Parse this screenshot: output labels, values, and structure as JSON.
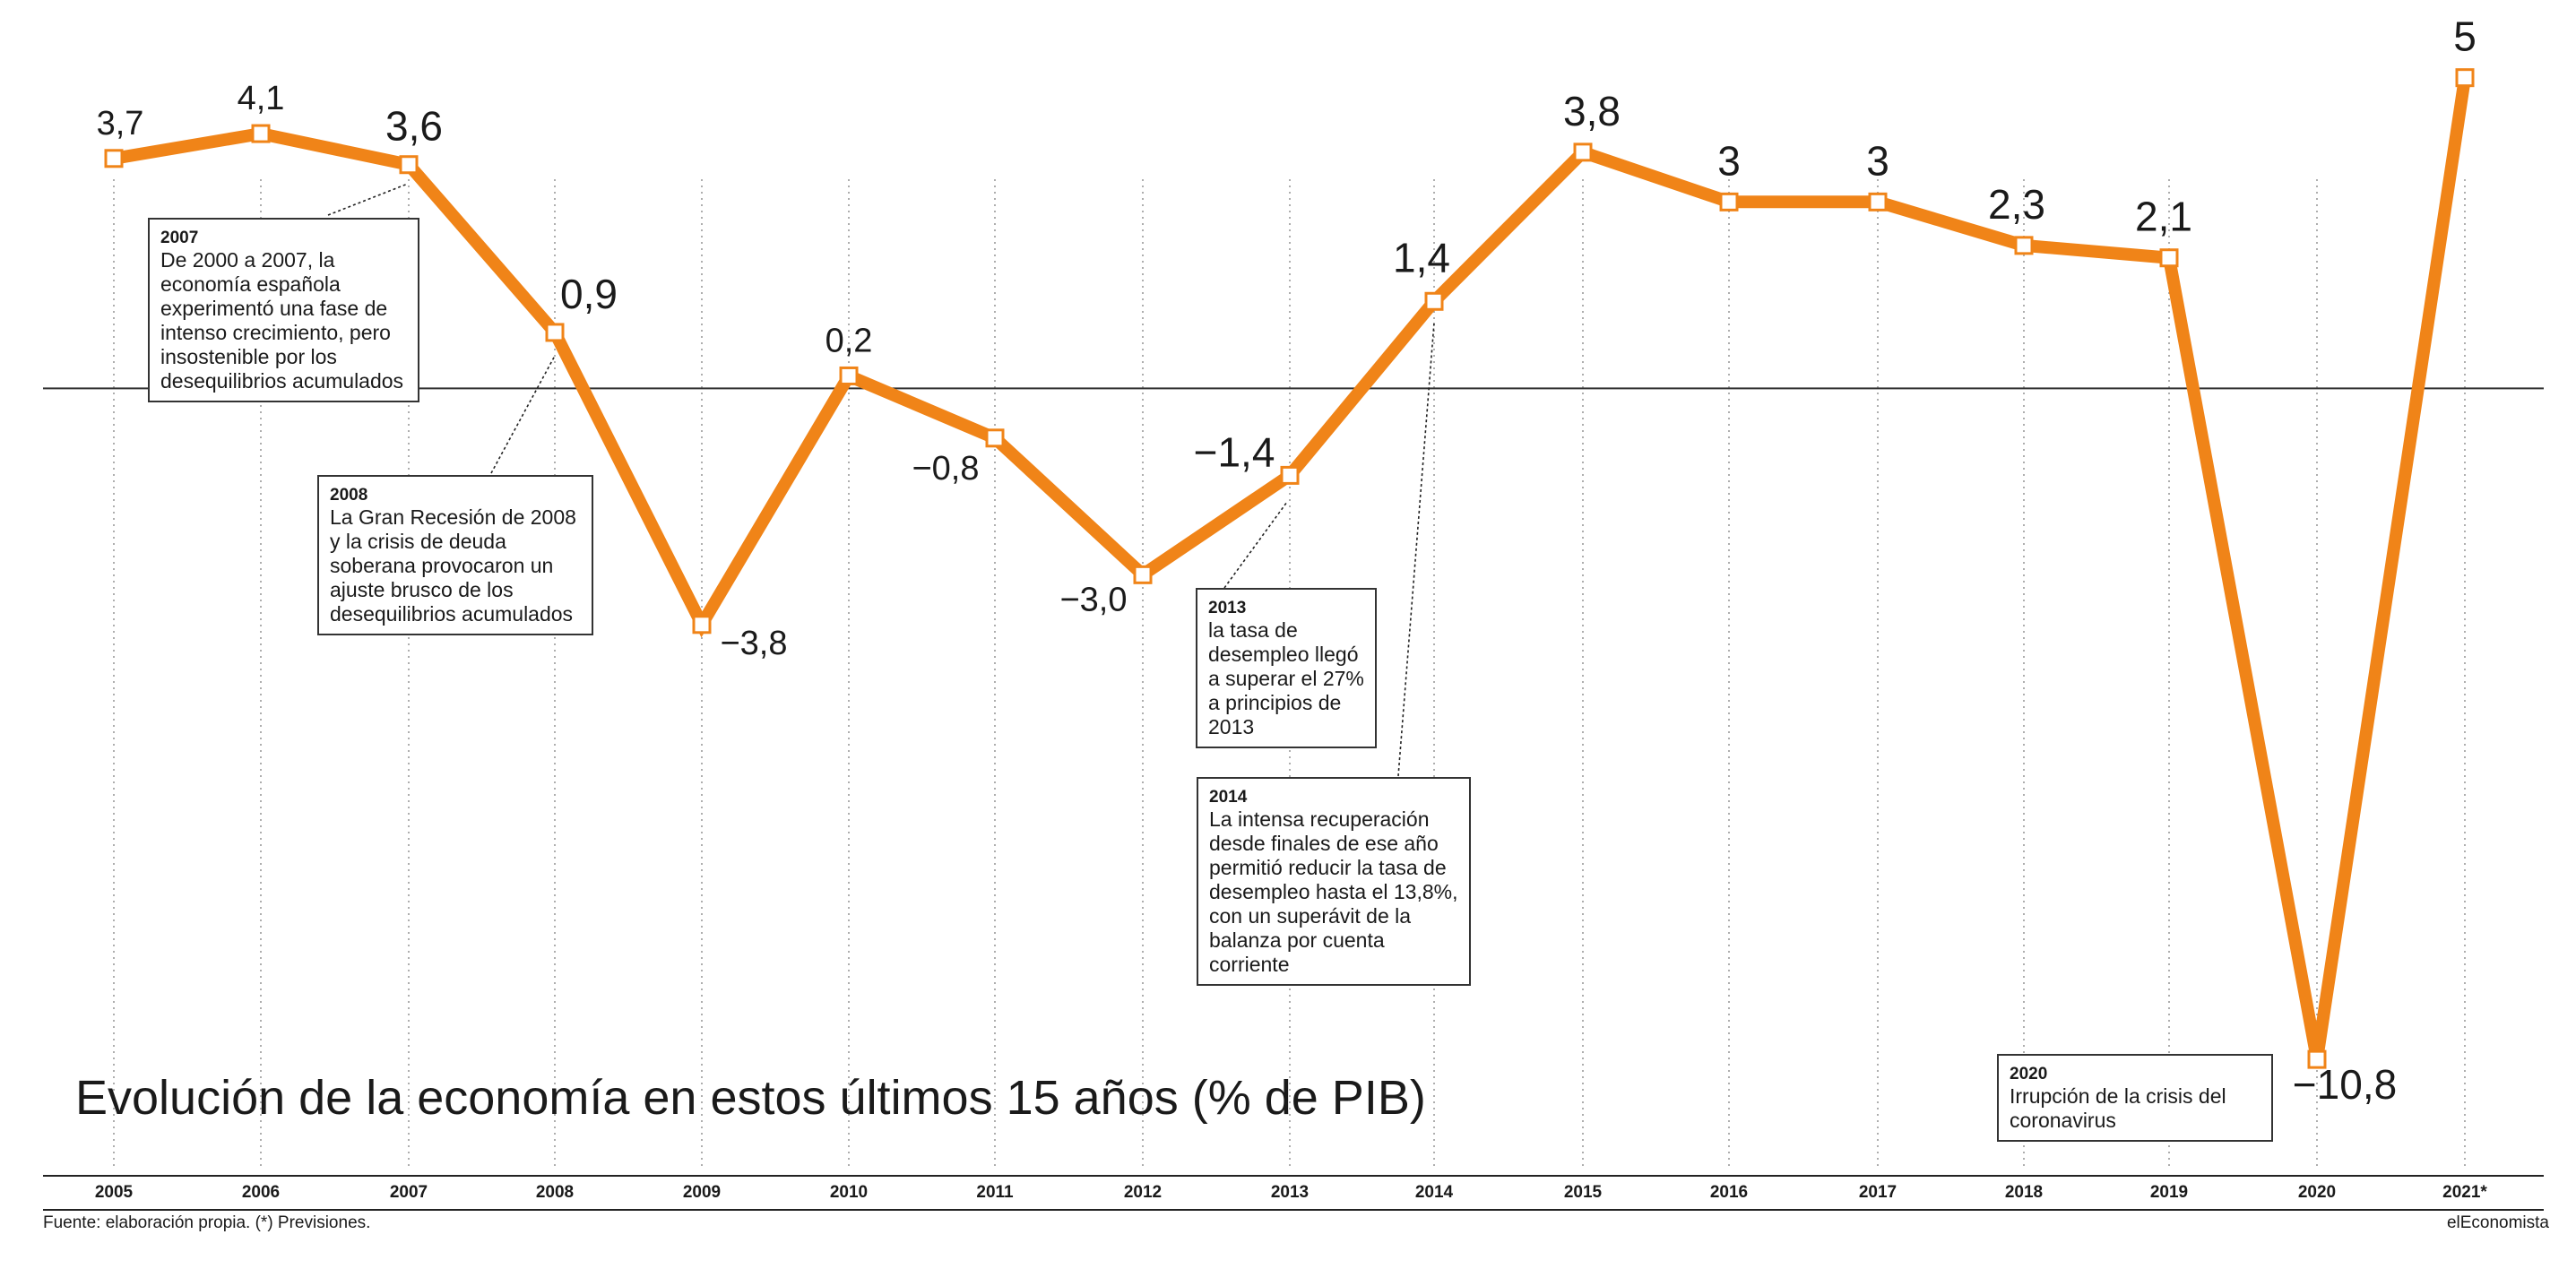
{
  "chart_data": {
    "type": "line",
    "title": "Evolución de la economía en estos últimos 15 años (% de PIB)",
    "categories": [
      "2005",
      "2006",
      "2007",
      "2008",
      "2009",
      "2010",
      "2011",
      "2012",
      "2013",
      "2014",
      "2015",
      "2016",
      "2017",
      "2018",
      "2019",
      "2020",
      "2021*"
    ],
    "values": [
      3.7,
      4.1,
      3.6,
      0.9,
      -3.8,
      0.2,
      -0.8,
      -3.0,
      -1.4,
      1.4,
      3.8,
      3.0,
      3.0,
      2.3,
      2.1,
      -10.8,
      5.0
    ],
    "value_labels": [
      "3,7",
      "4,1",
      "3,6",
      "0,9",
      "−3,8",
      "0,2",
      "−0,8",
      "−3,0",
      "−1,4",
      "1,4",
      "3,8",
      "3",
      "3",
      "2,3",
      "2,1",
      "−10,8",
      "5"
    ],
    "ylim": [
      -12.5,
      5.5
    ],
    "zero_line": true,
    "grid": "vertical-dotted",
    "line_color": "#f08418"
  },
  "annotations": [
    {
      "year": "2007",
      "text": "De 2000 a 2007, la economía española experimentó una fase de intenso crecimiento, pero insostenible por los desequilibrios acumulados"
    },
    {
      "year": "2008",
      "text": "La Gran Recesión de 2008 y la crisis de deuda soberana provocaron un ajuste brusco de los desequilibrios acumulados"
    },
    {
      "year": "2013",
      "text": "la tasa de desempleo llegó a superar el 27% a principios de 2013"
    },
    {
      "year": "2014",
      "text": "La intensa recuperación desde finales de ese año permitió reducir la tasa de desempleo hasta el 13,8%, con un superávit de la balanza por cuenta corriente"
    },
    {
      "year": "2020",
      "text": "Irrupción de la crisis del coronavirus"
    }
  ],
  "source": "Fuente: elaboración propia. (*) Previsiones.",
  "brand": "elEconomista"
}
